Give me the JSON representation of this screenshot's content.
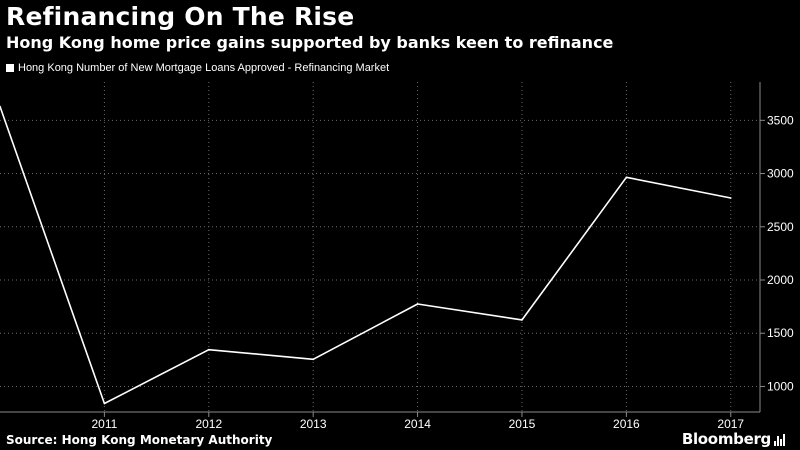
{
  "header": {
    "title": "Refinancing On The Rise",
    "subtitle": "Hong Kong home price gains supported by banks keen to refinance"
  },
  "footer": {
    "source": "Source: Hong Kong Monetary Authority",
    "brand": "Bloomberg"
  },
  "colors": {
    "background": "#000000",
    "line": "#ffffff",
    "grid": "#6a6a6a",
    "axis": "#8a8a8a"
  },
  "chart_data": {
    "type": "line",
    "x": [
      2010,
      2011,
      2012,
      2013,
      2014,
      2015,
      2016,
      2017
    ],
    "x_tick_labels": [
      "2011",
      "2012",
      "2013",
      "2014",
      "2015",
      "2016",
      "2017"
    ],
    "series": [
      {
        "name": "Hong Kong Number of New Mortgage Loans Approved - Refinancing Market",
        "values": [
          3630,
          840,
          1345,
          1255,
          1775,
          1625,
          2965,
          2770
        ]
      }
    ],
    "y_ticks": [
      1000,
      1500,
      2000,
      2500,
      3000,
      3500
    ],
    "y_tick_labels": [
      "1000",
      "1500",
      "2000",
      "2500",
      "3000",
      "3500"
    ],
    "ylim": [
      760,
      3860
    ],
    "xlim": [
      2010,
      2017.28
    ],
    "y_axis_position": "right",
    "legend_position": "top-left",
    "grid": true
  }
}
